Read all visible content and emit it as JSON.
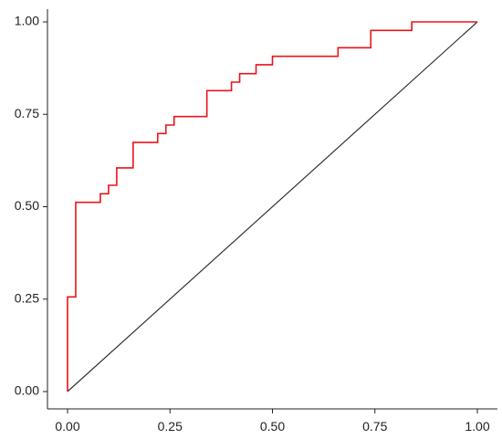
{
  "chart_data": {
    "type": "line",
    "title": "",
    "xlabel": "",
    "ylabel": "",
    "xlim": [
      -0.03,
      1.03
    ],
    "ylim": [
      -0.03,
      1.03
    ],
    "grid": false,
    "legend": "none",
    "x_ticks": [
      0.0,
      0.25,
      0.5,
      0.75,
      1.0
    ],
    "x_tick_labels": [
      "0.00",
      "0.25",
      "0.50",
      "0.75",
      "1.00"
    ],
    "y_ticks": [
      0.0,
      0.25,
      0.5,
      0.75,
      1.0
    ],
    "y_tick_labels": [
      "0.00",
      "0.25",
      "0.50",
      "0.75",
      "1.00"
    ],
    "series": [
      {
        "style": "step",
        "color": "#e8141a",
        "x": [
          0.0,
          0.0,
          0.02,
          0.02,
          0.08,
          0.08,
          0.1,
          0.1,
          0.12,
          0.12,
          0.16,
          0.16,
          0.22,
          0.22,
          0.24,
          0.24,
          0.26,
          0.26,
          0.34,
          0.34,
          0.4,
          0.4,
          0.42,
          0.42,
          0.46,
          0.46,
          0.5,
          0.5,
          0.66,
          0.66,
          0.74,
          0.74,
          0.84,
          0.84,
          1.0
        ],
        "y": [
          0.0,
          0.256,
          0.256,
          0.512,
          0.512,
          0.535,
          0.535,
          0.558,
          0.558,
          0.605,
          0.605,
          0.674,
          0.674,
          0.698,
          0.698,
          0.721,
          0.721,
          0.744,
          0.744,
          0.814,
          0.814,
          0.837,
          0.837,
          0.86,
          0.86,
          0.884,
          0.884,
          0.907,
          0.907,
          0.93,
          0.93,
          0.977,
          0.977,
          1.0,
          1.0
        ]
      },
      {
        "style": "diagonal",
        "color": "#333333",
        "x": [
          0.0,
          1.0
        ],
        "y": [
          0.0,
          1.0
        ]
      }
    ]
  }
}
